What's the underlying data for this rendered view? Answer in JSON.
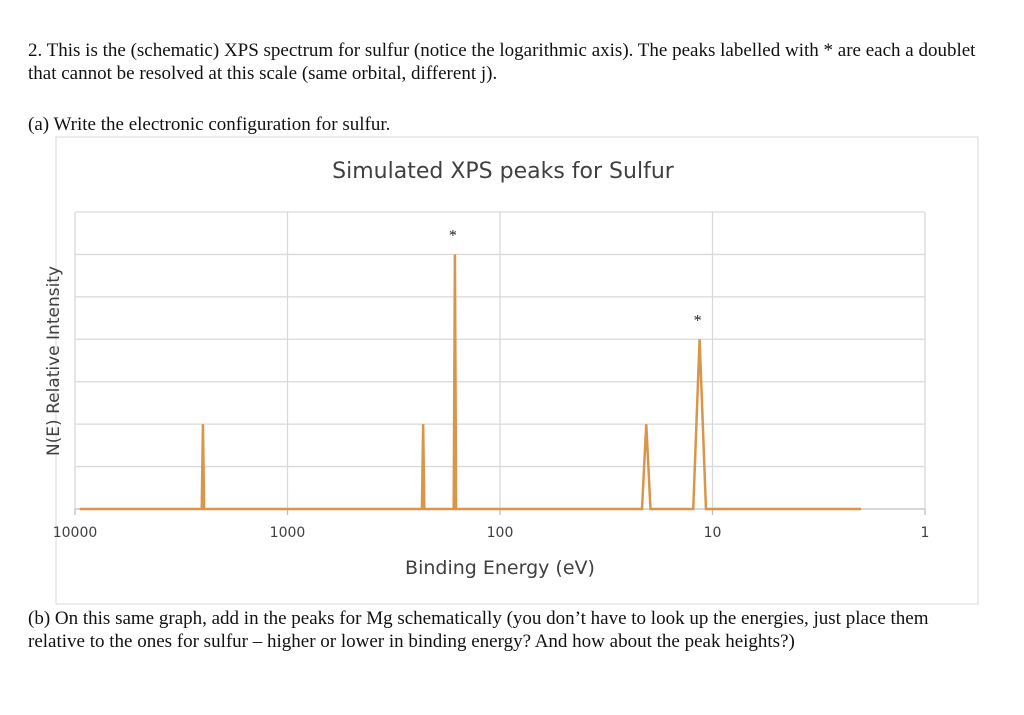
{
  "question": {
    "intro": "2. This is the (schematic) XPS spectrum for sulfur (notice the logarithmic axis). The peaks labelled with * are each a doublet that cannot be resolved at this scale (same orbital, different j).",
    "part_a": "(a) Write the electronic configuration for sulfur.",
    "part_b": "(b) On this same graph, add in the peaks for Mg schematically (you don’t have to look up the energies, just place them relative to the ones for sulfur – higher or lower in binding energy? And how about the peak heights?)"
  },
  "chart_data": {
    "type": "line",
    "title": "Simulated XPS peaks for Sulfur",
    "xlabel": "Binding Energy (eV)",
    "ylabel": "N(E) Relative Intensity",
    "xscale": "log",
    "xreversed": true,
    "xlim": [
      10000,
      1
    ],
    "ylim": [
      0,
      7
    ],
    "xticks": [
      "10000",
      "1000",
      "100",
      "10",
      "1"
    ],
    "xtick_values": [
      10000,
      1000,
      100,
      10,
      1
    ],
    "yticklabels_shown": false,
    "grid": true,
    "legend": "none",
    "line_color": "#D9964A",
    "baseline_range": [
      9500,
      2
    ],
    "peaks": [
      {
        "energy": 2500,
        "intensity": 2,
        "label": ""
      },
      {
        "energy": 230,
        "intensity": 2,
        "label": ""
      },
      {
        "energy": 163,
        "intensity": 6,
        "label": "*"
      },
      {
        "energy": 20.5,
        "intensity": 2,
        "label": ""
      },
      {
        "energy": 11.5,
        "intensity": 4,
        "label": "*"
      }
    ]
  }
}
